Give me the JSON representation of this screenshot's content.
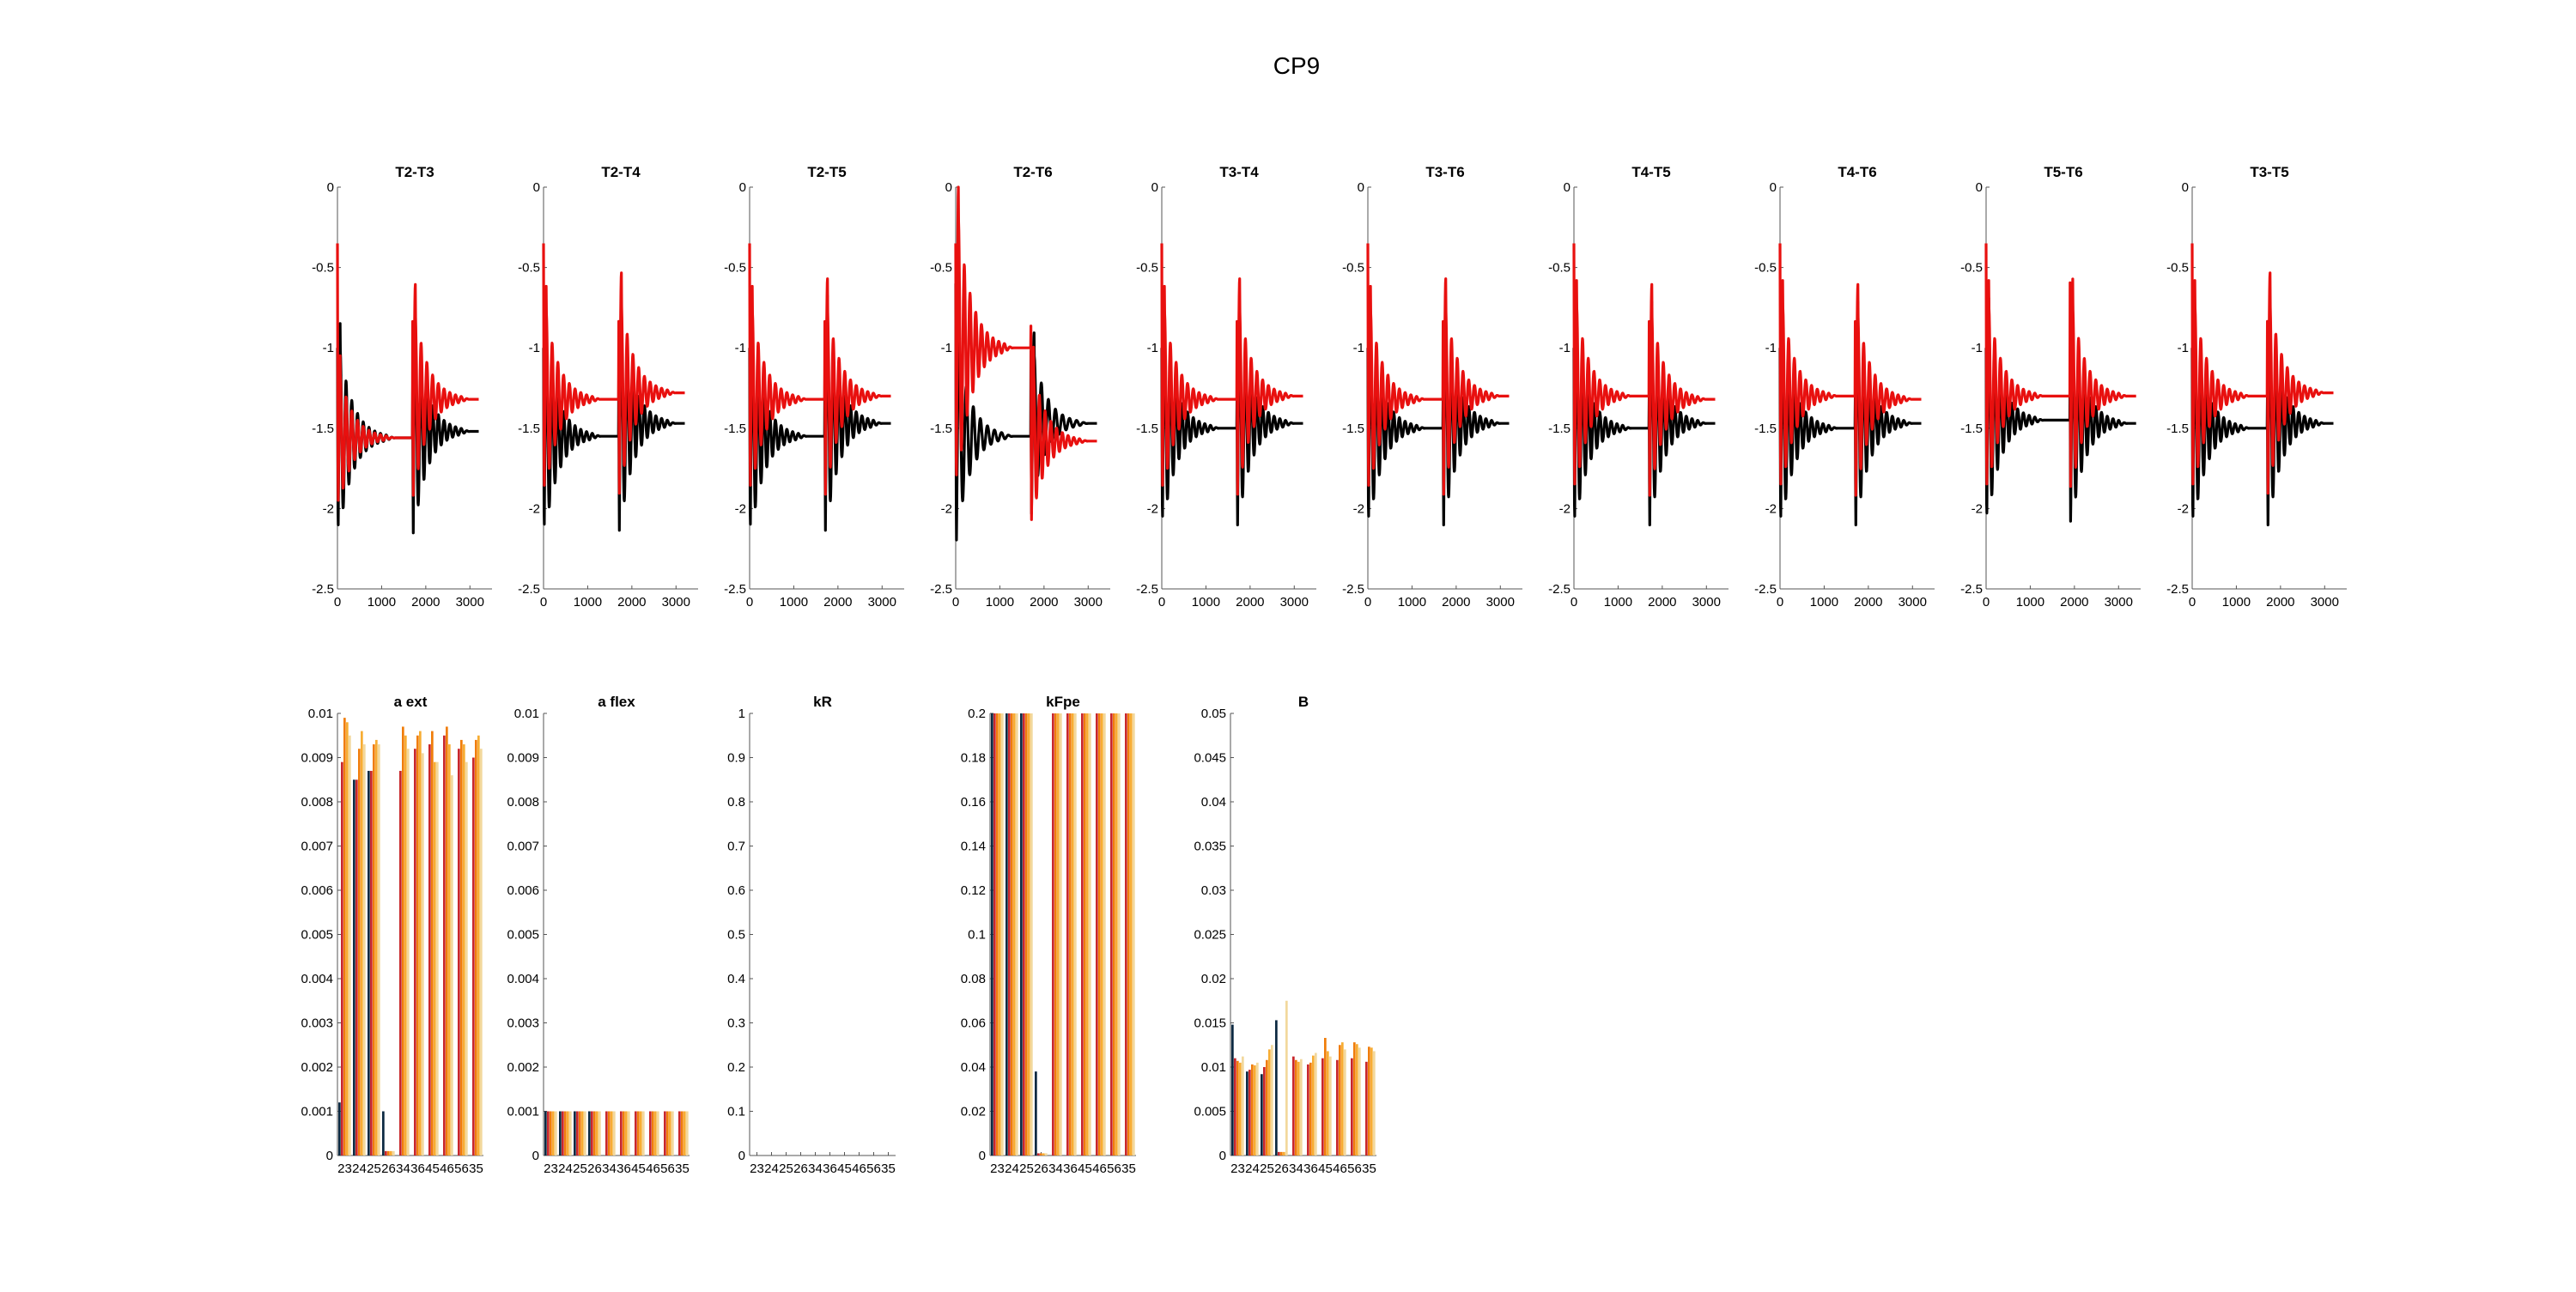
{
  "figure_title": "CP9",
  "colors": {
    "signal_black": "#000000",
    "signal_red": "#e8100f",
    "bar_palette": [
      "#0b2841",
      "#c8262b",
      "#f07d0a",
      "#f7ad33",
      "#f2d89c"
    ]
  },
  "chart_data": [
    {
      "type": "line",
      "title": "T2-T3",
      "xlim": [
        0,
        3500
      ],
      "ylim": [
        -2.5,
        0
      ],
      "xticks": [
        0,
        1000,
        2000,
        3000
      ],
      "yticks": [
        0,
        -0.5,
        -1,
        -1.5,
        -2,
        -2.5
      ],
      "series": [
        {
          "color": "black",
          "x0": 0,
          "x1": 1700,
          "x2": 3200,
          "start": -1.0,
          "end1": -1.56,
          "end2": -1.52,
          "peak": -0.8,
          "trough1": -2.45,
          "trough2": -2.45,
          "period": 130
        },
        {
          "color": "red",
          "x0": 0,
          "x1": 1700,
          "x2": 3200,
          "start": -0.35,
          "end1": -1.56,
          "end2": -1.32,
          "peak": -0.35,
          "trough1": -2.2,
          "trough2": -2.2,
          "period": 130
        }
      ]
    },
    {
      "type": "line",
      "title": "T2-T4",
      "xlim": [
        0,
        3500
      ],
      "ylim": [
        -2.5,
        0
      ],
      "xticks": [
        0,
        1000,
        2000,
        3000
      ],
      "yticks": [
        0,
        -0.5,
        -1,
        -1.5,
        -2,
        -2.5
      ],
      "series": [
        {
          "color": "black",
          "x0": 0,
          "x1": 1700,
          "x2": 3200,
          "start": -1.0,
          "end1": -1.55,
          "end2": -1.47,
          "peak": -0.7,
          "trough1": -2.45,
          "trough2": -2.45,
          "period": 130
        },
        {
          "color": "red",
          "x0": 0,
          "x1": 1700,
          "x2": 3200,
          "start": -0.35,
          "end1": -1.32,
          "end2": -1.28,
          "peak": -0.35,
          "trough1": -2.2,
          "trough2": -2.2,
          "period": 130
        }
      ]
    },
    {
      "type": "line",
      "title": "T2-T5",
      "xlim": [
        0,
        3500
      ],
      "ylim": [
        -2.5,
        0
      ],
      "xticks": [
        0,
        1000,
        2000,
        3000
      ],
      "yticks": [
        0,
        -0.5,
        -1,
        -1.5,
        -2,
        -2.5
      ],
      "series": [
        {
          "color": "black",
          "x0": 0,
          "x1": 1700,
          "x2": 3200,
          "start": -1.0,
          "end1": -1.55,
          "end2": -1.47,
          "peak": -0.7,
          "trough1": -2.45,
          "trough2": -2.45,
          "period": 130
        },
        {
          "color": "red",
          "x0": 0,
          "x1": 1700,
          "x2": 3200,
          "start": -0.35,
          "end1": -1.32,
          "end2": -1.3,
          "peak": -0.35,
          "trough1": -2.2,
          "trough2": -2.2,
          "period": 130
        }
      ]
    },
    {
      "type": "line",
      "title": "T2-T6",
      "xlim": [
        0,
        3500
      ],
      "ylim": [
        -2.5,
        0
      ],
      "xticks": [
        0,
        1000,
        2000,
        3000
      ],
      "yticks": [
        0,
        -0.5,
        -1,
        -1.5,
        -2,
        -2.5
      ],
      "series": [
        {
          "color": "black",
          "x0": 0,
          "x1": 1700,
          "x2": 3200,
          "start": -0.6,
          "end1": -1.55,
          "end2": -1.47,
          "peak": -0.6,
          "trough1": -2.45,
          "trough2": -2.2,
          "period": 160
        },
        {
          "color": "red",
          "x0": 0,
          "x1": 1700,
          "x2": 3200,
          "start": -0.35,
          "end1": -1.0,
          "end2": -1.58,
          "peak": -0.35,
          "trough1": -2.3,
          "trough2": -2.3,
          "period": 130
        }
      ]
    },
    {
      "type": "line",
      "title": "T3-T4",
      "xlim": [
        0,
        3500
      ],
      "ylim": [
        -2.5,
        0
      ],
      "xticks": [
        0,
        1000,
        2000,
        3000
      ],
      "yticks": [
        0,
        -0.5,
        -1,
        -1.5,
        -2,
        -2.5
      ],
      "series": [
        {
          "color": "black",
          "x0": 0,
          "x1": 1700,
          "x2": 3200,
          "start": -1.0,
          "end1": -1.5,
          "end2": -1.47,
          "peak": -0.9,
          "trough1": -2.4,
          "trough2": -2.4,
          "period": 130
        },
        {
          "color": "red",
          "x0": 0,
          "x1": 1700,
          "x2": 3200,
          "start": -0.35,
          "end1": -1.32,
          "end2": -1.3,
          "peak": -0.35,
          "trough1": -2.2,
          "trough2": -2.2,
          "period": 130
        }
      ]
    },
    {
      "type": "line",
      "title": "T3-T6",
      "xlim": [
        0,
        3500
      ],
      "ylim": [
        -2.5,
        0
      ],
      "xticks": [
        0,
        1000,
        2000,
        3000
      ],
      "yticks": [
        0,
        -0.5,
        -1,
        -1.5,
        -2,
        -2.5
      ],
      "series": [
        {
          "color": "black",
          "x0": 0,
          "x1": 1700,
          "x2": 3200,
          "start": -1.0,
          "end1": -1.5,
          "end2": -1.47,
          "peak": -0.9,
          "trough1": -2.4,
          "trough2": -2.4,
          "period": 130
        },
        {
          "color": "red",
          "x0": 0,
          "x1": 1700,
          "x2": 3200,
          "start": -0.35,
          "end1": -1.32,
          "end2": -1.3,
          "peak": -0.35,
          "trough1": -2.2,
          "trough2": -2.2,
          "period": 130
        }
      ]
    },
    {
      "type": "line",
      "title": "T4-T5",
      "xlim": [
        0,
        3500
      ],
      "ylim": [
        -2.5,
        0
      ],
      "xticks": [
        0,
        1000,
        2000,
        3000
      ],
      "yticks": [
        0,
        -0.5,
        -1,
        -1.5,
        -2,
        -2.5
      ],
      "series": [
        {
          "color": "black",
          "x0": 0,
          "x1": 1700,
          "x2": 3200,
          "start": -1.0,
          "end1": -1.5,
          "end2": -1.47,
          "peak": -0.9,
          "trough1": -2.4,
          "trough2": -2.4,
          "period": 130
        },
        {
          "color": "red",
          "x0": 0,
          "x1": 1700,
          "x2": 3200,
          "start": -0.35,
          "end1": -1.3,
          "end2": -1.32,
          "peak": -0.35,
          "trough1": -2.2,
          "trough2": -2.2,
          "period": 130
        }
      ]
    },
    {
      "type": "line",
      "title": "T4-T6",
      "xlim": [
        0,
        3500
      ],
      "ylim": [
        -2.5,
        0
      ],
      "xticks": [
        0,
        1000,
        2000,
        3000
      ],
      "yticks": [
        0,
        -0.5,
        -1,
        -1.5,
        -2,
        -2.5
      ],
      "series": [
        {
          "color": "black",
          "x0": 0,
          "x1": 1700,
          "x2": 3200,
          "start": -1.0,
          "end1": -1.5,
          "end2": -1.47,
          "peak": -0.9,
          "trough1": -2.4,
          "trough2": -2.4,
          "period": 130
        },
        {
          "color": "red",
          "x0": 0,
          "x1": 1700,
          "x2": 3200,
          "start": -0.35,
          "end1": -1.3,
          "end2": -1.32,
          "peak": -0.35,
          "trough1": -2.2,
          "trough2": -2.2,
          "period": 130
        }
      ]
    },
    {
      "type": "line",
      "title": "T5-T6",
      "xlim": [
        0,
        3500
      ],
      "ylim": [
        -2.5,
        0
      ],
      "xticks": [
        0,
        1000,
        2000,
        3000
      ],
      "yticks": [
        0,
        -0.5,
        -1,
        -1.5,
        -2,
        -2.5
      ],
      "series": [
        {
          "color": "black",
          "x0": 0,
          "x1": 1900,
          "x2": 3400,
          "start": -1.0,
          "end1": -1.45,
          "end2": -1.47,
          "peak": -0.9,
          "trough1": -2.4,
          "trough2": -2.4,
          "period": 130
        },
        {
          "color": "red",
          "x0": 0,
          "x1": 1900,
          "x2": 3400,
          "start": -0.35,
          "end1": -1.3,
          "end2": -1.3,
          "peak": -0.35,
          "trough1": -2.2,
          "trough2": -2.2,
          "period": 130
        }
      ]
    },
    {
      "type": "line",
      "title": "T3-T5",
      "xlim": [
        0,
        3500
      ],
      "ylim": [
        -2.5,
        0
      ],
      "xticks": [
        0,
        1000,
        2000,
        3000
      ],
      "yticks": [
        0,
        -0.5,
        -1,
        -1.5,
        -2,
        -2.5
      ],
      "series": [
        {
          "color": "black",
          "x0": 0,
          "x1": 1700,
          "x2": 3200,
          "start": -1.0,
          "end1": -1.5,
          "end2": -1.47,
          "peak": -0.9,
          "trough1": -2.4,
          "trough2": -2.4,
          "period": 130
        },
        {
          "color": "red",
          "x0": 0,
          "x1": 1700,
          "x2": 3200,
          "start": -0.35,
          "end1": -1.3,
          "end2": -1.28,
          "peak": -0.35,
          "trough1": -2.2,
          "trough2": -2.2,
          "period": 130
        }
      ]
    },
    {
      "type": "bar",
      "title": "a ext",
      "categories": [
        "23",
        "24",
        "25",
        "26",
        "34",
        "36",
        "45",
        "46",
        "56",
        "35"
      ],
      "ylim": [
        0,
        0.01
      ],
      "yticks": [
        "0",
        "0.001",
        "0.002",
        "0.003",
        "0.004",
        "0.005",
        "0.006",
        "0.007",
        "0.008",
        "0.009",
        "0.01"
      ],
      "series": [
        {
          "values": [
            0.0012,
            0.0085,
            0.0087,
            0.001,
            0,
            0,
            0,
            0,
            0,
            0
          ]
        },
        {
          "values": [
            0.0089,
            0.0085,
            0.0087,
            0.0001,
            0.0087,
            0.0092,
            0.0093,
            0.0095,
            0.0092,
            0.009
          ]
        },
        {
          "values": [
            0.0099,
            0.0092,
            0.0093,
            0.0001,
            0.0097,
            0.0095,
            0.0096,
            0.0097,
            0.0094,
            0.0094
          ]
        },
        {
          "values": [
            0.0098,
            0.0096,
            0.0094,
            0.0001,
            0.0095,
            0.0096,
            0.0089,
            0.0093,
            0.0093,
            0.0095
          ]
        },
        {
          "values": [
            0.0095,
            0.0093,
            0.0093,
            0.0001,
            0.0092,
            0.0091,
            0.0089,
            0.0086,
            0.0089,
            0.0092
          ]
        }
      ]
    },
    {
      "type": "bar",
      "title": "a flex",
      "categories": [
        "23",
        "24",
        "25",
        "26",
        "34",
        "36",
        "45",
        "46",
        "56",
        "35"
      ],
      "ylim": [
        0,
        0.01
      ],
      "yticks": [
        "0",
        "0.001",
        "0.002",
        "0.003",
        "0.004",
        "0.005",
        "0.006",
        "0.007",
        "0.008",
        "0.009",
        "0.01"
      ],
      "series": [
        {
          "values": [
            0.001,
            0.001,
            0.001,
            0.001,
            0,
            0,
            0,
            0,
            0,
            0
          ]
        },
        {
          "values": [
            0.001,
            0.001,
            0.001,
            0.001,
            0.001,
            0.001,
            0.001,
            0.001,
            0.001,
            0.001
          ]
        },
        {
          "values": [
            0.001,
            0.001,
            0.001,
            0.001,
            0.001,
            0.001,
            0.001,
            0.001,
            0.001,
            0.001
          ]
        },
        {
          "values": [
            0.001,
            0.001,
            0.001,
            0.001,
            0.001,
            0.001,
            0.001,
            0.001,
            0.001,
            0.001
          ]
        },
        {
          "values": [
            0.001,
            0.001,
            0.001,
            0.001,
            0.001,
            0.001,
            0.001,
            0.001,
            0.001,
            0.001
          ]
        }
      ]
    },
    {
      "type": "bar",
      "title": "kR",
      "categories": [
        "23",
        "24",
        "25",
        "26",
        "34",
        "36",
        "45",
        "46",
        "56",
        "35"
      ],
      "ylim": [
        0,
        1
      ],
      "yticks": [
        "0",
        "0.1",
        "0.2",
        "0.3",
        "0.4",
        "0.5",
        "0.6",
        "0.7",
        "0.8",
        "0.9",
        "1"
      ],
      "series": [
        {
          "values": [
            0,
            0,
            0,
            0,
            0,
            0,
            0,
            0,
            0,
            0
          ]
        },
        {
          "values": [
            0,
            0,
            0,
            0,
            0,
            0,
            0,
            0,
            0,
            0
          ]
        },
        {
          "values": [
            0,
            0,
            0,
            0,
            0,
            0,
            0,
            0,
            0,
            0
          ]
        },
        {
          "values": [
            0,
            0,
            0,
            0,
            0,
            0,
            0,
            0,
            0,
            0
          ]
        },
        {
          "values": [
            0,
            0,
            0,
            0,
            0,
            0,
            0,
            0,
            0,
            0
          ]
        }
      ]
    },
    {
      "type": "bar",
      "title": "kFpe",
      "categories": [
        "23",
        "24",
        "25",
        "26",
        "34",
        "36",
        "45",
        "46",
        "56",
        "35"
      ],
      "ylim": [
        0,
        0.2
      ],
      "yticks": [
        "0",
        "0.02",
        "0.04",
        "0.06",
        "0.08",
        "0.1",
        "0.12",
        "0.14",
        "0.16",
        "0.18",
        "0.2"
      ],
      "series": [
        {
          "values": [
            0.2,
            0.2,
            0.2,
            0.038,
            0,
            0,
            0,
            0,
            0,
            0
          ]
        },
        {
          "values": [
            0.2,
            0.2,
            0.2,
            0.001,
            0.2,
            0.2,
            0.2,
            0.2,
            0.2,
            0.2
          ]
        },
        {
          "values": [
            0.2,
            0.2,
            0.2,
            0.001,
            0.2,
            0.2,
            0.2,
            0.2,
            0.2,
            0.2
          ]
        },
        {
          "values": [
            0.2,
            0.2,
            0.2,
            0.001,
            0.2,
            0.2,
            0.2,
            0.2,
            0.2,
            0.2
          ]
        },
        {
          "values": [
            0.2,
            0.2,
            0.2,
            0.001,
            0.2,
            0.2,
            0.2,
            0.2,
            0.2,
            0.2
          ]
        }
      ]
    },
    {
      "type": "bar",
      "title": "B",
      "categories": [
        "23",
        "24",
        "25",
        "26",
        "34",
        "36",
        "45",
        "46",
        "56",
        "35"
      ],
      "ylim": [
        0,
        0.05
      ],
      "yticks": [
        "0",
        "0.005",
        "0.01",
        "0.015",
        "0.02",
        "0.025",
        "0.03",
        "0.035",
        "0.04",
        "0.045",
        "0.05"
      ],
      "series": [
        {
          "values": [
            0.0148,
            0.0095,
            0.0092,
            0.0153,
            0,
            0,
            0,
            0,
            0,
            0
          ]
        },
        {
          "values": [
            0.011,
            0.0097,
            0.01,
            0.0004,
            0.0112,
            0.0103,
            0.011,
            0.0108,
            0.011,
            0.0106
          ]
        },
        {
          "values": [
            0.0107,
            0.0103,
            0.0108,
            0.0004,
            0.0108,
            0.0105,
            0.0133,
            0.0125,
            0.0128,
            0.0123
          ]
        },
        {
          "values": [
            0.0105,
            0.0102,
            0.012,
            0.0004,
            0.0106,
            0.0113,
            0.0118,
            0.0128,
            0.0126,
            0.0122
          ]
        },
        {
          "values": [
            0.0112,
            0.0105,
            0.0125,
            0.0175,
            0.0109,
            0.0116,
            0.0112,
            0.012,
            0.0122,
            0.0118
          ]
        }
      ]
    }
  ]
}
